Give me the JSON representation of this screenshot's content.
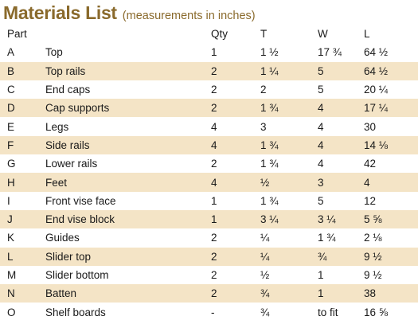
{
  "header": {
    "title": "Materials List",
    "subtitle": "(measurements in inches)"
  },
  "columns": [
    "Part",
    "",
    "Qty",
    "T",
    "W",
    "L"
  ],
  "rows": [
    {
      "id": "A",
      "name": "Top",
      "qty": "1",
      "t": "1 ½",
      "w": "17 ¾",
      "l": "64 ½"
    },
    {
      "id": "B",
      "name": "Top rails",
      "qty": "2",
      "t": "1 ¼",
      "w": "5",
      "l": "64 ½"
    },
    {
      "id": "C",
      "name": "End caps",
      "qty": "2",
      "t": "2",
      "w": "5",
      "l": "20 ¼"
    },
    {
      "id": "D",
      "name": "Cap supports",
      "qty": "2",
      "t": "1 ¾",
      "w": "4",
      "l": "17 ¼"
    },
    {
      "id": "E",
      "name": "Legs",
      "qty": "4",
      "t": "3",
      "w": "4",
      "l": "30"
    },
    {
      "id": "F",
      "name": "Side rails",
      "qty": "4",
      "t": "1 ¾",
      "w": "4",
      "l": "14 ⅛"
    },
    {
      "id": "G",
      "name": "Lower rails",
      "qty": "2",
      "t": "1 ¾",
      "w": "4",
      "l": "42"
    },
    {
      "id": "H",
      "name": "Feet",
      "qty": "4",
      "t": "½",
      "w": "3",
      "l": "4"
    },
    {
      "id": "I",
      "name": "Front vise face",
      "qty": "1",
      "t": "1 ¾",
      "w": "5",
      "l": "12"
    },
    {
      "id": "J",
      "name": "End vise block",
      "qty": "1",
      "t": "3 ¼",
      "w": "3 ¼",
      "l": "5 ⅝"
    },
    {
      "id": "K",
      "name": "Guides",
      "qty": "2",
      "t": "¼",
      "w": "1 ¾",
      "l": "2 ⅛"
    },
    {
      "id": "L",
      "name": "Slider top",
      "qty": "2",
      "t": "¼",
      "w": "¾",
      "l": "9 ½"
    },
    {
      "id": "M",
      "name": "Slider bottom",
      "qty": "2",
      "t": "½",
      "w": "1",
      "l": "9 ½"
    },
    {
      "id": "N",
      "name": "Batten",
      "qty": "2",
      "t": "¾",
      "w": "1",
      "l": "38"
    },
    {
      "id": "O",
      "name": "Shelf boards",
      "qty": "-",
      "t": "¾",
      "w": "to fit",
      "l": "16 ⅝"
    }
  ],
  "colors": {
    "title": "#8a6a2c",
    "row_shade": "#f4e4c6"
  }
}
